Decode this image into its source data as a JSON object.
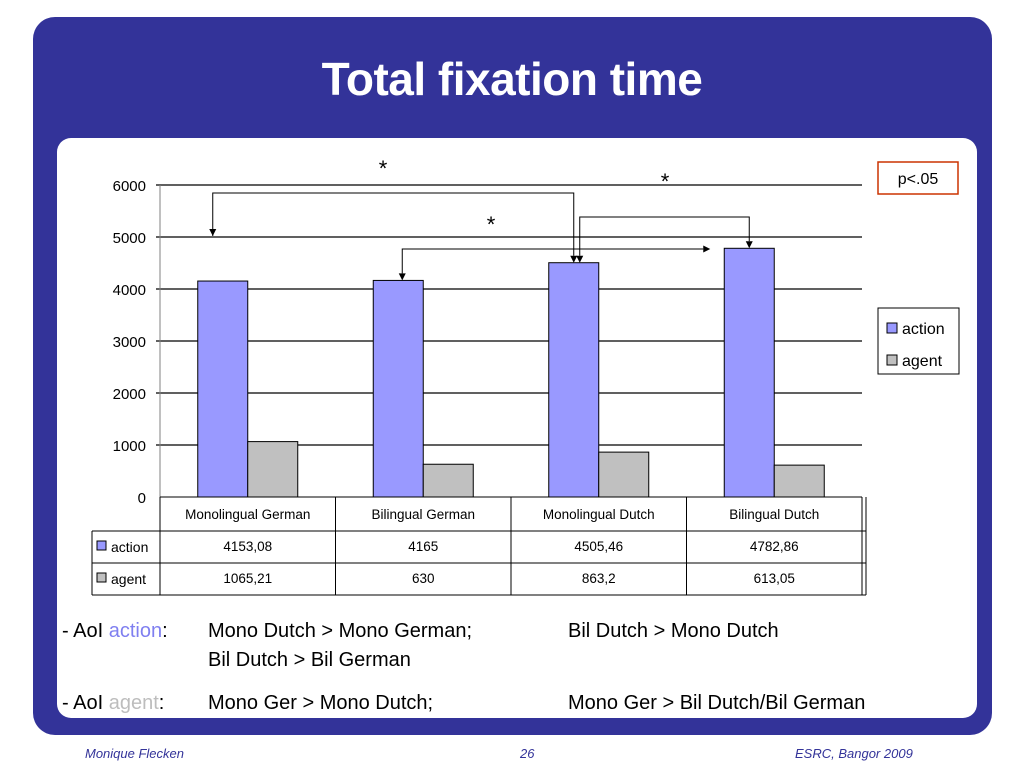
{
  "slide": {
    "title": "Total fixation time",
    "footer_left": "Monique Flecken",
    "footer_center": "26",
    "footer_right": "ESRC, Bangor 2009"
  },
  "chart_data": {
    "type": "bar",
    "categories": [
      "Monolingual German",
      "Bilingual German",
      "Monolingual Dutch",
      "Bilingual Dutch"
    ],
    "series": [
      {
        "name": "action",
        "values": [
          4153.08,
          4165,
          4505.46,
          4782.86
        ],
        "labels": [
          "4153,08",
          "4165",
          "4505,46",
          "4782,86"
        ],
        "color": "#9999ff"
      },
      {
        "name": "agent",
        "values": [
          1065.21,
          630,
          863.2,
          613.05
        ],
        "labels": [
          "1065,21",
          "630",
          "863,2",
          "613,05"
        ],
        "color": "#c0c0c0"
      }
    ],
    "ylim": [
      0,
      6000
    ],
    "yticks": [
      0,
      1000,
      2000,
      3000,
      4000,
      5000,
      6000
    ],
    "grid": true,
    "legend": "right",
    "data_table": true,
    "significance_note": "p<.05",
    "significance_marker": "*"
  },
  "notes": {
    "action_prefix": "- AoI ",
    "action_word": "action",
    "action_colon": ":",
    "action_text_1": "Mono Dutch > Mono German;",
    "action_text_2": "Bil Dutch > Mono Dutch",
    "action_text_3": "Bil Dutch > Bil German",
    "agent_prefix": "- AoI ",
    "agent_word": "agent",
    "agent_colon": ":",
    "agent_text_1": "Mono Ger > Mono Dutch;",
    "agent_text_2": "Mono Ger > Bil Dutch/Bil German"
  }
}
